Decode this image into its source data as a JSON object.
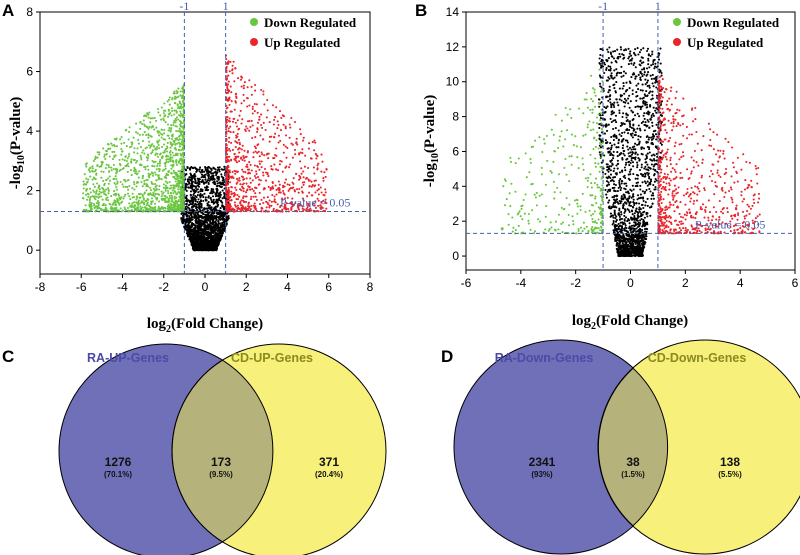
{
  "colors": {
    "down": "#6ac63f",
    "up": "#e8262b",
    "neutral": "#000000",
    "threshold": "#4460b0",
    "venn_left": "#7070b8",
    "venn_right": "#f7f07a",
    "venn_overlap": "#b6b27c",
    "venn_left_title": "#4a4aa8",
    "venn_right_title": "#8a8a20"
  },
  "chart_data": [
    {
      "type": "scatter",
      "panel": "A",
      "title": "",
      "xlabel_main": "log",
      "xlabel_sub": "2",
      "xlabel_rest": "(Fold Change)",
      "ylabel_main": "-log",
      "ylabel_sub": "10",
      "ylabel_rest": "(P-value)",
      "xlim": [
        -8,
        8
      ],
      "ylim": [
        -0.8,
        8
      ],
      "xticks": [
        -8,
        -6,
        -4,
        -2,
        0,
        2,
        4,
        6,
        8
      ],
      "yticks": [
        0,
        2,
        4,
        6,
        8
      ],
      "vlines": [
        -1,
        1
      ],
      "vline_labels": [
        "-1",
        "1"
      ],
      "hline": 1.3,
      "hline_label": "P-value = 0.05",
      "legend": [
        "Down Regulated",
        "Up Regulated"
      ],
      "legend_position": "top-right",
      "scatter_params": {
        "width": 0.55,
        "steep": 1.7,
        "ymaxDown": 5.6,
        "ymaxUp": 6.6,
        "xspread": 6.0,
        "seed": 11
      }
    },
    {
      "type": "scatter",
      "panel": "B",
      "title": "",
      "xlabel_main": "log",
      "xlabel_sub": "2",
      "xlabel_rest": "(Fold Change)",
      "ylabel_main": "-log",
      "ylabel_sub": "10",
      "ylabel_rest": "(P-value)",
      "xlim": [
        -6,
        6
      ],
      "ylim": [
        -0.8,
        14
      ],
      "xticks": [
        -6,
        -4,
        -2,
        0,
        2,
        4,
        6
      ],
      "yticks": [
        0,
        2,
        4,
        6,
        8,
        10,
        12,
        14
      ],
      "vlines": [
        -1,
        1
      ],
      "vline_labels": [
        "-1",
        "1"
      ],
      "hline": 1.3,
      "hline_label": "P-value = 0.05",
      "legend": [
        "Down Regulated",
        "Up Regulated"
      ],
      "legend_position": "top-right",
      "scatter_params": {
        "width": 0.45,
        "steep": 8.0,
        "ymaxDown": 11.0,
        "ymaxUp": 10.5,
        "xspread": 4.8,
        "seed": 29
      }
    }
  ],
  "venn": [
    {
      "panel": "C",
      "left_title": "RA-UP-Genes",
      "right_title": "CD-UP-Genes",
      "left_count": "1276",
      "left_pct": "(70.1%)",
      "overlap_count": "173",
      "overlap_pct": "(9.5%)",
      "right_count": "371",
      "right_pct": "(20.4%)"
    },
    {
      "panel": "D",
      "left_title": "RA-Down-Genes",
      "right_title": "CD-Down-Genes",
      "left_count": "2341",
      "left_pct": "(93%)",
      "overlap_count": "38",
      "overlap_pct": "(1.5%)",
      "right_count": "138",
      "right_pct": "(5.5%)"
    }
  ]
}
